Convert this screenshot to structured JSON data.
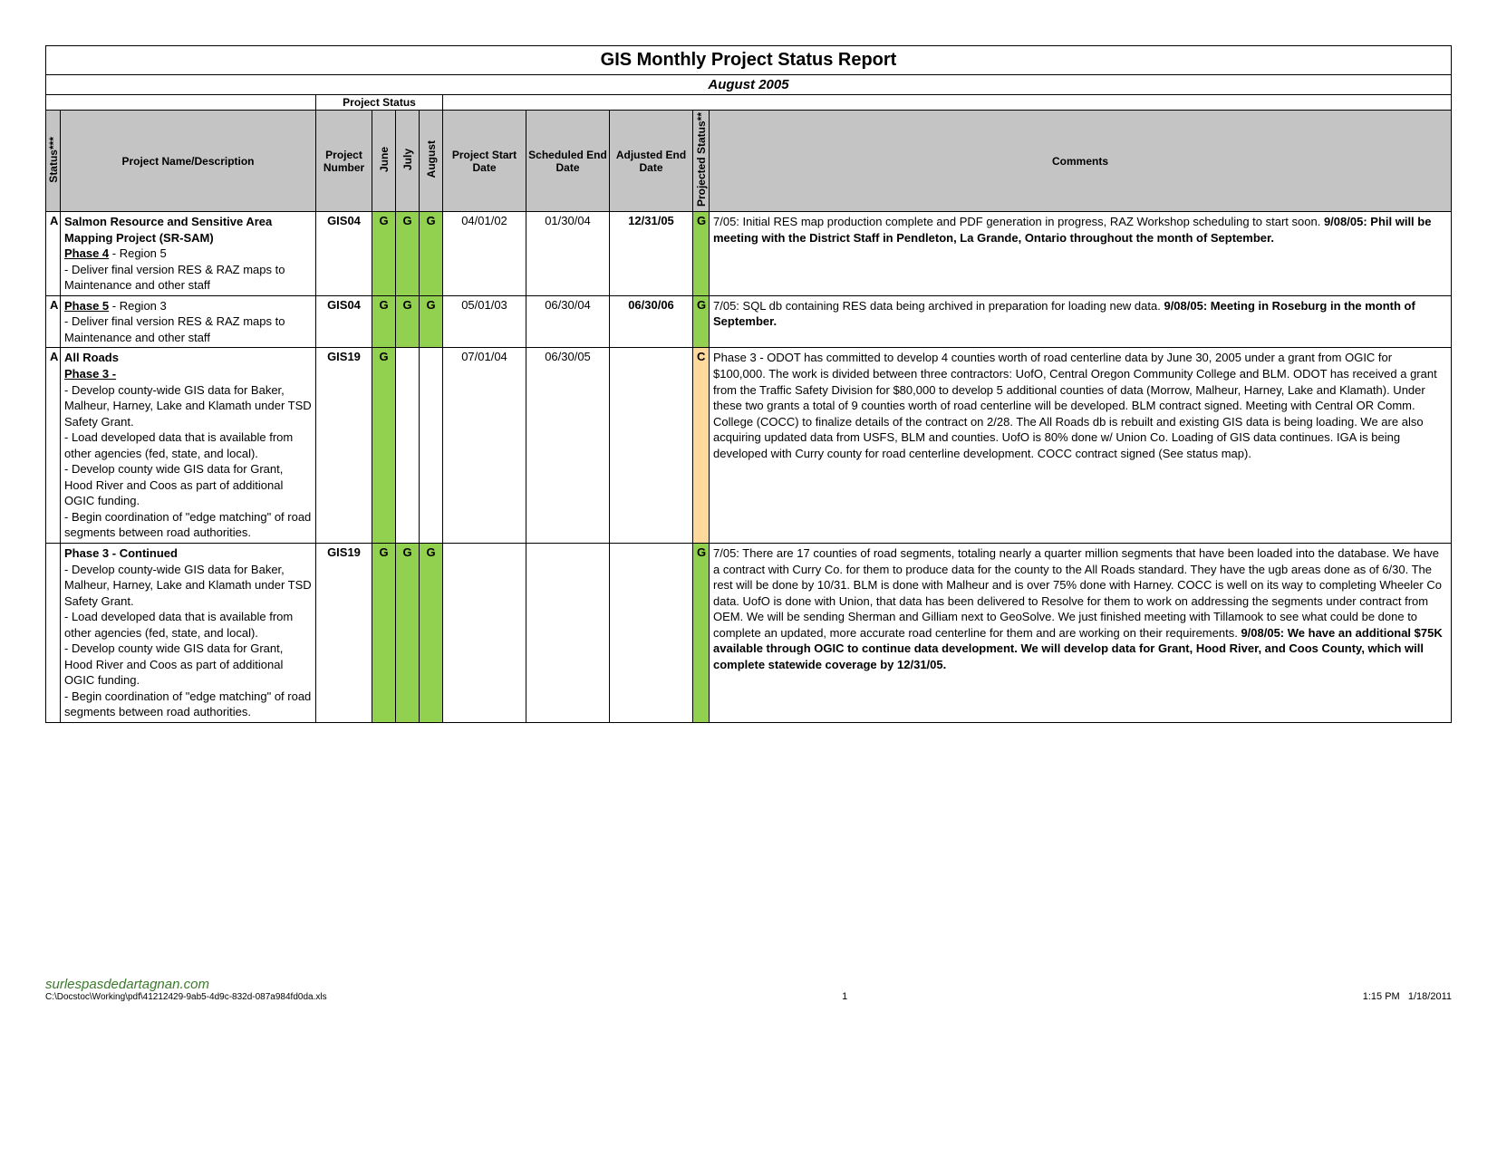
{
  "report": {
    "title": "GIS Monthly Project Status Report",
    "subtitle": "August 2005",
    "project_status_label": "Project Status"
  },
  "headers": {
    "status": "Status***",
    "desc": "Project Name/Description",
    "number": "Project Number",
    "june": "June",
    "july": "July",
    "august": "August",
    "start": "Project Start Date",
    "scheduled": "Scheduled End Date",
    "adjusted": "Adjusted End Date",
    "projected": "Projected Status**",
    "comments": "Comments"
  },
  "colors": {
    "header_bg": "#c4c4c4",
    "green": "#92d050",
    "caution": "#ffd89b",
    "border": "#000000"
  },
  "rows": [
    {
      "status": "A",
      "desc_html": "<span class='b'>Salmon Resource and Sensitive Area Mapping Project (SR-SAM)</span><br><span class='b u'>Phase 4</span>  - Region 5<br> - Deliver final version RES & RAZ maps to Maintenance and other staff",
      "number": "GIS04",
      "june": "G",
      "june_class": "green",
      "july": "G",
      "july_class": "green",
      "august": "G",
      "august_class": "green",
      "start": "04/01/02",
      "scheduled": "01/30/04",
      "adjusted": "12/31/05",
      "adjusted_bold": true,
      "projected": "G",
      "projected_class": "green",
      "comments_html": "7/05: Initial RES map production complete and PDF generation in progress, RAZ Workshop scheduling to start soon.  <span class='b'>9/08/05:  Phil will be meeting with the District Staff in Pendleton, La Grande, Ontario throughout the month of September.</span>"
    },
    {
      "status": "A",
      "desc_html": "<span class='b u'>Phase 5</span>  - Region 3<br> - Deliver final version RES & RAZ maps to Maintenance and other staff",
      "number": "GIS04",
      "june": "G",
      "june_class": "green",
      "july": "G",
      "july_class": "green",
      "august": "G",
      "august_class": "green",
      "start": "05/01/03",
      "scheduled": "06/30/04",
      "adjusted": "06/30/06",
      "adjusted_bold": true,
      "projected": "G",
      "projected_class": "green",
      "comments_html": "7/05: SQL db containing RES data being archived in preparation for loading new data.  <span class='b'>9/08/05:  Meeting in Roseburg in the month of September.</span>"
    },
    {
      "status": "A",
      "desc_html": "<span class='b'>All Roads</span><br><span class='b u'>Phase 3 -</span><br> - Develop county-wide GIS data for Baker, Malheur, Harney, Lake and Klamath under TSD Safety Grant.<br> - Load developed data that is available from other agencies (fed, state, and local).<br> - Develop county wide GIS data for Grant, Hood River and Coos as part of additional OGIC funding.<br> -  Begin coordination of \"edge matching\" of road segments between road authorities.",
      "number": "GIS19",
      "june": "G",
      "june_class": "green",
      "july": "",
      "july_class": "",
      "august": "",
      "august_class": "",
      "start": "07/01/04",
      "scheduled": "06/30/05",
      "adjusted": "",
      "adjusted_bold": false,
      "projected": "C",
      "projected_class": "caution",
      "comments_html": "Phase 3 - ODOT has committed to develop 4 counties worth of road centerline data by June 30, 2005 under a grant from OGIC for $100,000.  The work is divided between three contractors: UofO, Central Oregon Community College and BLM.  ODOT has received a grant from the Traffic Safety Division for $80,000 to develop 5 additional counties of data (Morrow, Malheur, Harney, Lake and Klamath).  Under these two grants a total of 9 counties worth of road centerline will be developed.  BLM contract signed. Meeting with Central OR Comm. College (COCC) to finalize details of the contract on 2/28.  The All Roads db is rebuilt and existing GIS data is being loading.  We are also acquiring updated data from USFS, BLM and counties.  UofO is 80% done w/ Union Co.  Loading of GIS data continues.  IGA is being developed with Curry county for road centerline development. COCC contract signed (See status map)."
    },
    {
      "status": "",
      "desc_html": "<span class='b'>Phase 3 - Continued</span><br> - Develop county-wide GIS data for Baker, Malheur, Harney, Lake and Klamath under TSD Safety Grant.<br> - Load developed data that is available from other agencies (fed, state, and local).<br> - Develop county wide GIS data for Grant, Hood River and Coos as part of additional OGIC funding.<br> -  Begin coordination of \"edge matching\" of road segments between road authorities.",
      "number": "GIS19",
      "june": "G",
      "june_class": "green",
      "july": "G",
      "july_class": "green",
      "august": "G",
      "august_class": "green",
      "start": "",
      "scheduled": "",
      "adjusted": "",
      "adjusted_bold": false,
      "projected": "G",
      "projected_class": "green",
      "comments_html": "7/05: There are 17 counties of road segments, totaling nearly a quarter million segments that have been loaded into the database.  We have a contract with Curry Co. for them to produce data for the county to the All Roads standard.  They have the ugb areas done as of 6/30.  The rest will be done by 10/31.  BLM is done with Malheur and is over 75% done with Harney.  COCC is well on its way to completing Wheeler Co data.  UofO is done with Union, that data has been delivered to Resolve for them to work on addressing the segments under contract from OEM.  We will be sending Sherman and Gilliam next to GeoSolve.   We just finished meeting with Tillamook to see what could be done to complete an updated, more accurate road centerline for them and are working on their requirements.  <span class='b'>9/08/05:  We have an additional $75K available through OGIC to continue data development.   We will develop data for Grant, Hood River, and Coos County, which will complete statewide coverage by 12/31/05.</span>"
    }
  ],
  "footer": {
    "watermark": "surlespasdedartagnan.com",
    "path": "C:\\Docstoc\\Working\\pdf\\41212429-9ab5-4d9c-832d-087a984fd0da.xls",
    "page": "1",
    "time": "1:15 PM",
    "date": "1/18/2011"
  }
}
